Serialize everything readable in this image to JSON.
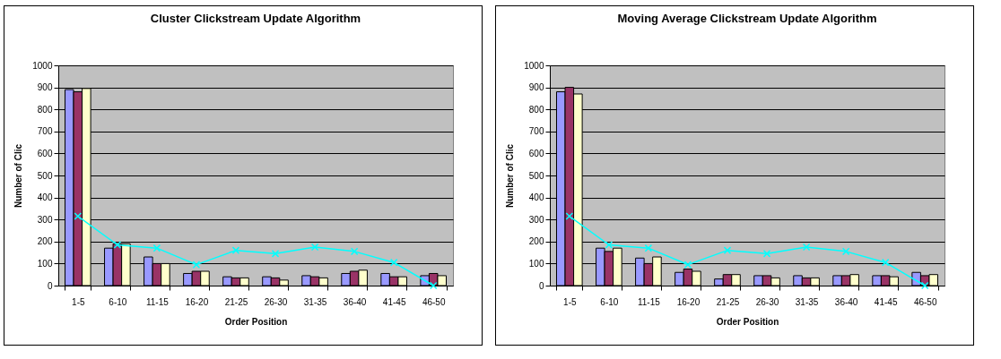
{
  "chart_data": [
    {
      "type": "bar",
      "title": "Cluster Clickstream Update Algorithm",
      "xlabel": "Order Position",
      "ylabel": "Number of Clic",
      "categories": [
        "1-5",
        "6-10",
        "11-15",
        "16-20",
        "21-25",
        "26-30",
        "31-35",
        "36-40",
        "41-45",
        "46-50"
      ],
      "ylim": [
        0,
        1000
      ],
      "yticks": [
        0,
        100,
        200,
        300,
        400,
        500,
        600,
        700,
        800,
        900,
        1000
      ],
      "grid": "y",
      "series": [
        {
          "color": "#9999ff",
          "values": [
            890,
            170,
            130,
            55,
            40,
            40,
            45,
            55,
            55,
            45
          ]
        },
        {
          "color": "#993366",
          "values": [
            880,
            190,
            100,
            65,
            35,
            35,
            40,
            65,
            40,
            55
          ]
        },
        {
          "color": "#ffffcc",
          "values": [
            895,
            190,
            100,
            65,
            35,
            25,
            35,
            70,
            40,
            45
          ]
        },
        {
          "type": "line",
          "color": "#00ffff",
          "marker": "cross",
          "values": [
            315,
            185,
            170,
            95,
            160,
            145,
            175,
            155,
            105,
            0
          ]
        }
      ]
    },
    {
      "type": "bar",
      "title": "Moving Average Clickstream Update Algorithm",
      "xlabel": "Order Position",
      "ylabel": "Number of Clic",
      "categories": [
        "1-5",
        "6-10",
        "11-15",
        "16-20",
        "21-25",
        "26-30",
        "31-35",
        "36-40",
        "41-45",
        "46-50"
      ],
      "ylim": [
        0,
        1000
      ],
      "yticks": [
        0,
        100,
        200,
        300,
        400,
        500,
        600,
        700,
        800,
        900,
        1000
      ],
      "grid": "y",
      "series": [
        {
          "color": "#9999ff",
          "values": [
            880,
            170,
            125,
            60,
            30,
            45,
            45,
            45,
            45,
            60
          ]
        },
        {
          "color": "#993366",
          "values": [
            900,
            155,
            100,
            75,
            50,
            45,
            35,
            45,
            45,
            45
          ]
        },
        {
          "color": "#ffffcc",
          "values": [
            870,
            170,
            130,
            65,
            50,
            35,
            35,
            50,
            40,
            50
          ]
        },
        {
          "type": "line",
          "color": "#00ffff",
          "marker": "cross",
          "values": [
            315,
            185,
            170,
            95,
            160,
            145,
            175,
            155,
            105,
            0
          ]
        }
      ]
    }
  ]
}
